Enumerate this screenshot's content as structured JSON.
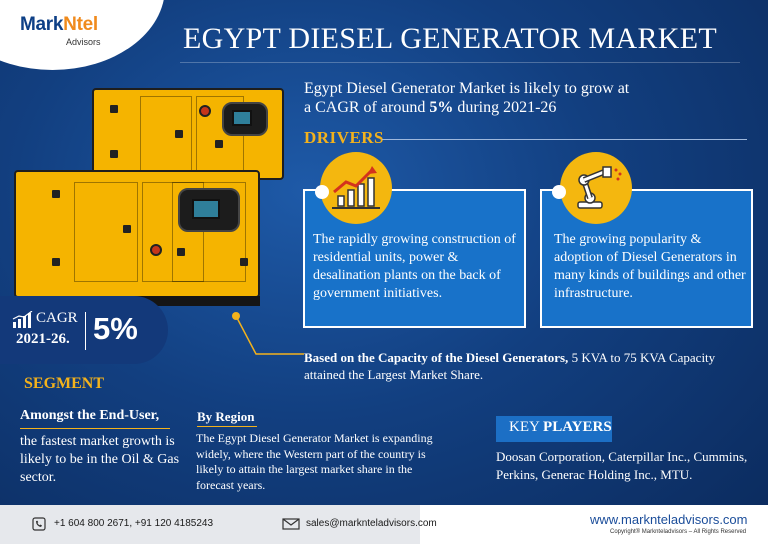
{
  "brand": {
    "logo_main_1": "Mark",
    "logo_main_2": "Ntel",
    "logo_sub": "Advisors",
    "accent_color": "#f08a1c",
    "brand_color": "#0d3f86"
  },
  "header": {
    "title": "EGYPT DIESEL GENERATOR MARKET"
  },
  "intro": {
    "line1": "Egypt Diesel Generator Market is likely to grow at",
    "line2_prefix": "a CAGR of around ",
    "line2_bold": "5%",
    "line2_suffix": " during 2021-26"
  },
  "drivers": {
    "label": "DRIVERS",
    "items": [
      {
        "icon": "growth-chart-icon",
        "text": "The rapidly growing construction of residential units, power & desalination plants on the back of government initiatives."
      },
      {
        "icon": "robot-arm-icon",
        "text": "The growing popularity & adoption of Diesel Generators in many kinds of buildings and other infrastructure."
      }
    ]
  },
  "cagr": {
    "label": "CAGR",
    "years": "2021-26.",
    "value": "5%"
  },
  "capacity": {
    "bold": "Based on the Capacity of the Diesel Generators,",
    "rest": " 5 KVA to 75 KVA Capacity attained the Largest Market Share."
  },
  "segment": {
    "label": "SEGMENT",
    "end_user_label": "Amongst the End-User,",
    "end_user_text": "the fastest market growth is likely to be in the Oil & Gas sector.",
    "region_label": "By Region",
    "region_text": "The Egypt Diesel Generator Market is expanding widely, where the Western part of the country is likely to attain the largest market share in the forecast years."
  },
  "key_players": {
    "label_1": "KEY ",
    "label_2": "PLAYERS",
    "text": "Doosan Corporation, Caterpillar Inc., Cummins, Perkins, Generac Holding Inc., MTU."
  },
  "footer": {
    "phone": "+1 604 800 2671, +91 120 4185243",
    "email": "sales@marknteladvisors.com",
    "website": "www.marknteladvisors.com",
    "copyright": "Copyright® Marknteladvisors – All Rights Reserved"
  }
}
